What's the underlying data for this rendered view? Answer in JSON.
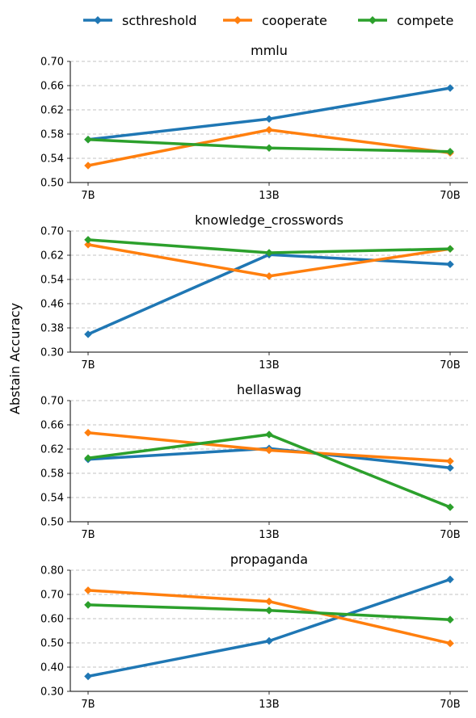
{
  "ylabel": "Abstain Accuracy",
  "legend": {
    "placement": "top-center",
    "entries": [
      {
        "name": "scthreshold",
        "color": "#1f77b4"
      },
      {
        "name": "cooperate",
        "color": "#ff7f0e"
      },
      {
        "name": "compete",
        "color": "#2ca02c"
      }
    ]
  },
  "chart_data": [
    {
      "type": "line",
      "title": "mmlu",
      "categories": [
        "7B",
        "13B",
        "70B"
      ],
      "ylim": [
        0.5,
        0.7
      ],
      "yticks": [
        "0.50",
        "0.54",
        "0.58",
        "0.62",
        "0.66",
        "0.70"
      ],
      "grid": "y-dashed",
      "series": [
        {
          "name": "scthreshold",
          "values": [
            0.571,
            0.605,
            0.656
          ]
        },
        {
          "name": "cooperate",
          "values": [
            0.528,
            0.587,
            0.549
          ]
        },
        {
          "name": "compete",
          "values": [
            0.571,
            0.557,
            0.551
          ]
        }
      ]
    },
    {
      "type": "line",
      "title": "knowledge_crosswords",
      "categories": [
        "7B",
        "13B",
        "70B"
      ],
      "ylim": [
        0.3,
        0.7
      ],
      "yticks": [
        "0.30",
        "0.38",
        "0.46",
        "0.54",
        "0.62",
        "0.70"
      ],
      "grid": "y-dashed",
      "series": [
        {
          "name": "scthreshold",
          "values": [
            0.359,
            0.622,
            0.59
          ]
        },
        {
          "name": "cooperate",
          "values": [
            0.655,
            0.551,
            0.641
          ]
        },
        {
          "name": "compete",
          "values": [
            0.671,
            0.628,
            0.641
          ]
        }
      ]
    },
    {
      "type": "line",
      "title": "hellaswag",
      "categories": [
        "7B",
        "13B",
        "70B"
      ],
      "ylim": [
        0.5,
        0.7
      ],
      "yticks": [
        "0.50",
        "0.54",
        "0.58",
        "0.62",
        "0.66",
        "0.70"
      ],
      "grid": "y-dashed",
      "series": [
        {
          "name": "scthreshold",
          "values": [
            0.603,
            0.621,
            0.589
          ]
        },
        {
          "name": "cooperate",
          "values": [
            0.647,
            0.618,
            0.6
          ]
        },
        {
          "name": "compete",
          "values": [
            0.605,
            0.644,
            0.524
          ]
        }
      ]
    },
    {
      "type": "line",
      "title": "propaganda",
      "categories": [
        "7B",
        "13B",
        "70B"
      ],
      "ylim": [
        0.3,
        0.8
      ],
      "yticks": [
        "0.30",
        "0.40",
        "0.50",
        "0.60",
        "0.70",
        "0.80"
      ],
      "grid": "y-dashed",
      "series": [
        {
          "name": "scthreshold",
          "values": [
            0.362,
            0.508,
            0.762
          ]
        },
        {
          "name": "cooperate",
          "values": [
            0.717,
            0.671,
            0.498
          ]
        },
        {
          "name": "compete",
          "values": [
            0.657,
            0.634,
            0.596
          ]
        }
      ]
    }
  ]
}
